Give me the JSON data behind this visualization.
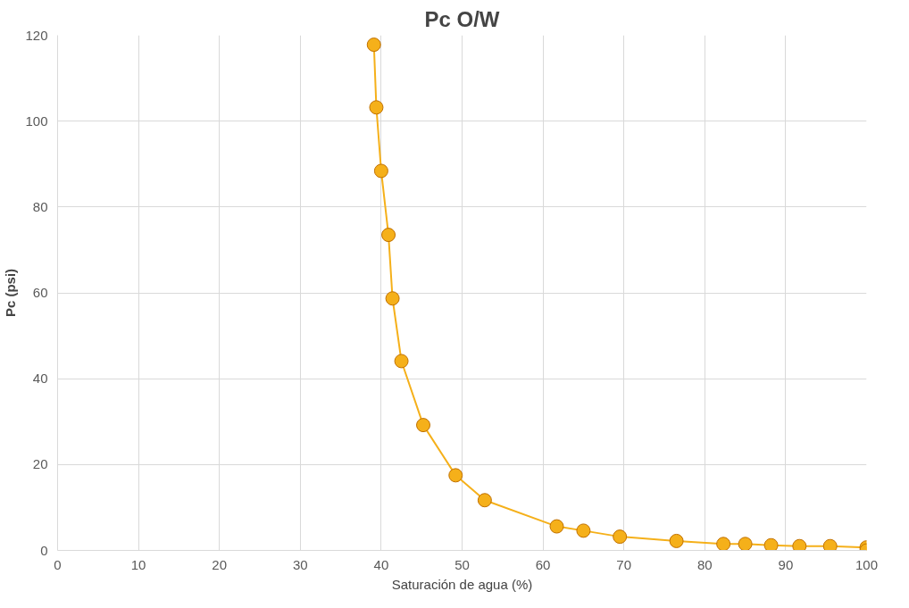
{
  "chart_data": {
    "type": "line",
    "title": "Pc O/W",
    "xlabel": "Saturación de agua (%)",
    "ylabel": "Pc (psi)",
    "xlim": [
      0,
      100
    ],
    "xticks": [
      0,
      10,
      20,
      30,
      40,
      50,
      60,
      70,
      80,
      90,
      100
    ],
    "ylim": [
      0,
      120
    ],
    "yticks": [
      0,
      20,
      40,
      60,
      80,
      100,
      120
    ],
    "grid": true,
    "marker": "circle",
    "series": [
      {
        "color": "#f5b01a",
        "x": [
          39.1,
          39.4,
          40.0,
          40.9,
          41.4,
          42.5,
          45.2,
          49.2,
          52.8,
          61.7,
          65.0,
          69.5,
          76.5,
          82.3,
          85.0,
          88.2,
          91.7,
          95.5,
          100,
          100
        ],
        "values": [
          117.8,
          103.2,
          88.4,
          73.5,
          58.7,
          44.1,
          29.2,
          17.5,
          11.7,
          5.6,
          4.6,
          3.2,
          2.2,
          1.5,
          1.5,
          1.2,
          1.0,
          1.0,
          0.7,
          0
        ]
      }
    ]
  }
}
